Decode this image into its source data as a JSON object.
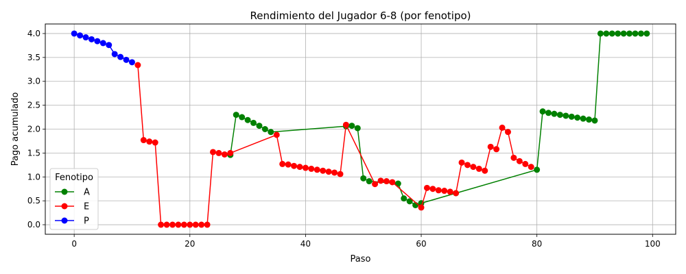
{
  "chart_data": {
    "type": "line",
    "title": "Rendimiento del Jugador 6-8 (por fenotipo)",
    "xlabel": "Paso",
    "ylabel": "Pago acumulado",
    "xlim": [
      -5,
      104
    ],
    "ylim": [
      -0.2,
      4.2
    ],
    "xticks": [
      0,
      20,
      40,
      60,
      80,
      100
    ],
    "yticks": [
      0.0,
      0.5,
      1.0,
      1.5,
      2.0,
      2.5,
      3.0,
      3.5,
      4.0
    ],
    "grid": true,
    "legend": {
      "title": "Fenotipo",
      "placement": "bottom-left"
    },
    "series": [
      {
        "name": "A",
        "color": "#008000",
        "x": [
          27,
          28,
          29,
          30,
          31,
          32,
          33,
          34,
          47,
          48,
          49,
          50,
          51,
          56,
          57,
          58,
          59,
          60,
          66,
          80,
          81,
          82,
          83,
          84,
          85,
          86,
          87,
          88,
          89,
          90,
          91,
          92,
          93,
          94,
          95,
          96,
          97,
          98,
          99
        ],
        "y": [
          1.46,
          2.3,
          2.25,
          2.19,
          2.13,
          2.07,
          2.0,
          1.94,
          2.06,
          2.07,
          2.02,
          0.97,
          0.91,
          0.86,
          0.55,
          0.49,
          0.41,
          0.45,
          0.66,
          1.15,
          2.37,
          2.34,
          2.32,
          2.3,
          2.28,
          2.26,
          2.24,
          2.22,
          2.2,
          2.18,
          4.0,
          4.0,
          4.0,
          4.0,
          4.0,
          4.0,
          4.0,
          4.0,
          4.0
        ]
      },
      {
        "name": "E",
        "color": "#ff0000",
        "x": [
          11,
          12,
          13,
          14,
          15,
          16,
          17,
          18,
          19,
          20,
          21,
          22,
          23,
          24,
          25,
          26,
          27,
          35,
          36,
          37,
          38,
          39,
          40,
          41,
          42,
          43,
          44,
          45,
          46,
          47,
          52,
          53,
          54,
          55,
          60,
          61,
          62,
          63,
          64,
          65,
          66,
          67,
          68,
          69,
          70,
          71,
          72,
          73,
          74,
          75,
          76,
          77,
          78,
          79
        ],
        "y": [
          3.34,
          1.77,
          1.74,
          1.72,
          0.0,
          0.0,
          0.0,
          0.0,
          0.0,
          0.0,
          0.0,
          0.0,
          0.0,
          1.52,
          1.5,
          1.47,
          1.5,
          1.88,
          1.27,
          1.26,
          1.23,
          1.21,
          1.19,
          1.17,
          1.15,
          1.13,
          1.11,
          1.09,
          1.06,
          2.09,
          0.85,
          0.92,
          0.91,
          0.89,
          0.36,
          0.77,
          0.75,
          0.72,
          0.71,
          0.69,
          0.66,
          1.3,
          1.25,
          1.21,
          1.17,
          1.13,
          1.63,
          1.58,
          2.03,
          1.94,
          1.4,
          1.33,
          1.27,
          1.21
        ]
      },
      {
        "name": "P",
        "color": "#0000ff",
        "x": [
          0,
          1,
          2,
          3,
          4,
          5,
          6,
          7,
          8,
          9,
          10
        ],
        "y": [
          4.0,
          3.96,
          3.92,
          3.88,
          3.84,
          3.8,
          3.76,
          3.57,
          3.51,
          3.45,
          3.4
        ]
      }
    ]
  }
}
